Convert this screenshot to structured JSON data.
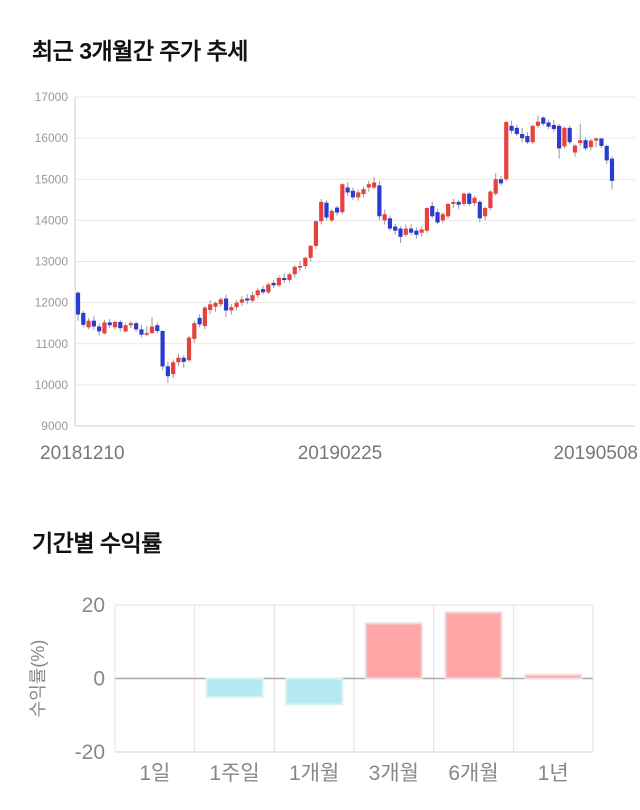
{
  "page": {
    "background": "#ffffff"
  },
  "chart_data": [
    {
      "type": "candlestick",
      "title": "최근 3개월간 주가 추세",
      "ylabel": "",
      "xlabel": "",
      "y_ticks": [
        17000,
        16000,
        15000,
        14000,
        13000,
        12000,
        11000,
        10000,
        9000
      ],
      "x_ticks": [
        "20181210",
        "20190225",
        "20190508"
      ],
      "ylim": [
        9000,
        17000
      ],
      "grid": true,
      "colors": {
        "up": "#e8403d",
        "down": "#2a3cd0",
        "wick": "#999999",
        "grid": "#e7e7e7",
        "axis": "#cccccc",
        "tick_text": "#999999",
        "xtick_text": "#777777"
      },
      "ohlc": [
        [
          12240,
          12280,
          11560,
          11710
        ],
        [
          11750,
          11800,
          11400,
          11460
        ],
        [
          11400,
          11620,
          11350,
          11560
        ],
        [
          11560,
          11680,
          11330,
          11420
        ],
        [
          11420,
          11500,
          11200,
          11300
        ],
        [
          11250,
          11580,
          11230,
          11520
        ],
        [
          11520,
          11600,
          11380,
          11450
        ],
        [
          11400,
          11560,
          11350,
          11530
        ],
        [
          11530,
          11570,
          11300,
          11380
        ],
        [
          11300,
          11500,
          11280,
          11450
        ],
        [
          11450,
          11550,
          11380,
          11500
        ],
        [
          11500,
          11540,
          11280,
          11350
        ],
        [
          11350,
          11460,
          11150,
          11220
        ],
        [
          11220,
          11430,
          11180,
          11260
        ],
        [
          11260,
          11650,
          11240,
          11420
        ],
        [
          11450,
          11520,
          11250,
          11310
        ],
        [
          11310,
          11330,
          10360,
          10450
        ],
        [
          10450,
          10560,
          10050,
          10210
        ],
        [
          10260,
          10620,
          10160,
          10550
        ],
        [
          10550,
          10760,
          10460,
          10660
        ],
        [
          10660,
          10720,
          10420,
          10560
        ],
        [
          10600,
          11200,
          10560,
          11150
        ],
        [
          11120,
          11560,
          11020,
          11500
        ],
        [
          11630,
          11720,
          11400,
          11470
        ],
        [
          11430,
          11920,
          11360,
          11880
        ],
        [
          11820,
          12060,
          11720,
          11960
        ],
        [
          11900,
          12030,
          11780,
          11990
        ],
        [
          11960,
          12130,
          11900,
          12080
        ],
        [
          12100,
          12190,
          11650,
          11810
        ],
        [
          11810,
          11960,
          11710,
          11890
        ],
        [
          11890,
          12060,
          11810,
          12000
        ],
        [
          12000,
          12160,
          11920,
          12080
        ],
        [
          12100,
          12210,
          11960,
          12050
        ],
        [
          12050,
          12260,
          12000,
          12180
        ],
        [
          12180,
          12360,
          12110,
          12300
        ],
        [
          12330,
          12410,
          12200,
          12250
        ],
        [
          12250,
          12490,
          12210,
          12440
        ],
        [
          12480,
          12560,
          12350,
          12420
        ],
        [
          12420,
          12660,
          12380,
          12600
        ],
        [
          12600,
          12710,
          12480,
          12550
        ],
        [
          12550,
          12730,
          12500,
          12690
        ],
        [
          12690,
          12910,
          12610,
          12870
        ],
        [
          12870,
          13010,
          12760,
          12890
        ],
        [
          12890,
          13120,
          12820,
          13090
        ],
        [
          13090,
          13400,
          13000,
          13380
        ],
        [
          13380,
          14000,
          13300,
          13980
        ],
        [
          13980,
          14520,
          13900,
          14450
        ],
        [
          14430,
          14480,
          14000,
          14070
        ],
        [
          14000,
          14280,
          13950,
          14230
        ],
        [
          14310,
          14360,
          14120,
          14190
        ],
        [
          14200,
          14900,
          14150,
          14880
        ],
        [
          14800,
          14930,
          14600,
          14680
        ],
        [
          14720,
          14800,
          14500,
          14560
        ],
        [
          14560,
          14750,
          14480,
          14680
        ],
        [
          14640,
          14820,
          14560,
          14760
        ],
        [
          14800,
          14960,
          14700,
          14880
        ],
        [
          14800,
          15050,
          14750,
          14920
        ],
        [
          14850,
          14960,
          14000,
          14100
        ],
        [
          14000,
          14260,
          13900,
          14150
        ],
        [
          14050,
          14120,
          13750,
          13800
        ],
        [
          13850,
          13920,
          13650,
          13750
        ],
        [
          13800,
          13850,
          13450,
          13600
        ],
        [
          13650,
          13900,
          13600,
          13800
        ],
        [
          13800,
          13900,
          13640,
          13700
        ],
        [
          13750,
          13830,
          13550,
          13650
        ],
        [
          13700,
          13850,
          13600,
          13780
        ],
        [
          13750,
          14320,
          13700,
          14300
        ],
        [
          14350,
          14460,
          14050,
          14100
        ],
        [
          14200,
          14280,
          13900,
          13950
        ],
        [
          14000,
          14200,
          13930,
          14150
        ],
        [
          14100,
          14420,
          14050,
          14400
        ],
        [
          14400,
          14520,
          14300,
          14450
        ],
        [
          14450,
          14500,
          14280,
          14380
        ],
        [
          14400,
          14680,
          14350,
          14650
        ],
        [
          14650,
          14700,
          14350,
          14400
        ],
        [
          14420,
          14600,
          14350,
          14550
        ],
        [
          14450,
          14500,
          13950,
          14050
        ],
        [
          14100,
          14330,
          14000,
          14300
        ],
        [
          14300,
          14730,
          14250,
          14700
        ],
        [
          14650,
          15150,
          14600,
          15000
        ],
        [
          15000,
          15080,
          14850,
          14900
        ],
        [
          15000,
          16420,
          14950,
          16390
        ],
        [
          16300,
          16420,
          16100,
          16180
        ],
        [
          16250,
          16320,
          16050,
          16100
        ],
        [
          16100,
          16250,
          15900,
          16000
        ],
        [
          16050,
          16150,
          15850,
          15900
        ],
        [
          15900,
          16320,
          15850,
          16300
        ],
        [
          16300,
          16550,
          16250,
          16400
        ],
        [
          16500,
          16530,
          16300,
          16350
        ],
        [
          16380,
          16450,
          16220,
          16280
        ],
        [
          16320,
          16440,
          16150,
          16220
        ],
        [
          16300,
          16340,
          15500,
          15750
        ],
        [
          15800,
          16280,
          15750,
          16250
        ],
        [
          16250,
          16300,
          15850,
          15900
        ],
        [
          15650,
          15850,
          15550,
          15820
        ],
        [
          15880,
          16350,
          15800,
          15950
        ],
        [
          15950,
          16000,
          15700,
          15750
        ],
        [
          15780,
          15980,
          15700,
          15940
        ],
        [
          15940,
          16020,
          15780,
          15990
        ],
        [
          15990,
          16010,
          15760,
          15810
        ],
        [
          15810,
          15840,
          15380,
          15460
        ],
        [
          15500,
          15560,
          14750,
          14960
        ]
      ]
    },
    {
      "type": "bar",
      "title": "기간별 수익률",
      "ylabel": "수익률(%)",
      "xlabel": "",
      "y_ticks": [
        20,
        0,
        -20
      ],
      "categories": [
        "1일",
        "1주일",
        "1개월",
        "3개월",
        "6개월",
        "1년"
      ],
      "values": [
        0,
        -5,
        -7,
        15,
        18,
        1
      ],
      "ylim": [
        -20,
        20
      ],
      "grid": true,
      "legend": false,
      "colors": {
        "positive": "#ffa6a6",
        "positive_edge": "#eedddd",
        "negative": "#b5e8f2",
        "negative_edge": "#d5f0f6",
        "grid": "#e3e3e3",
        "bottom_grid": "#d5d5d5",
        "zero_axis": "#aaaaaa",
        "tick_text": "#888888",
        "category_text": "#888888",
        "ylabel_text": "#888888"
      }
    }
  ]
}
